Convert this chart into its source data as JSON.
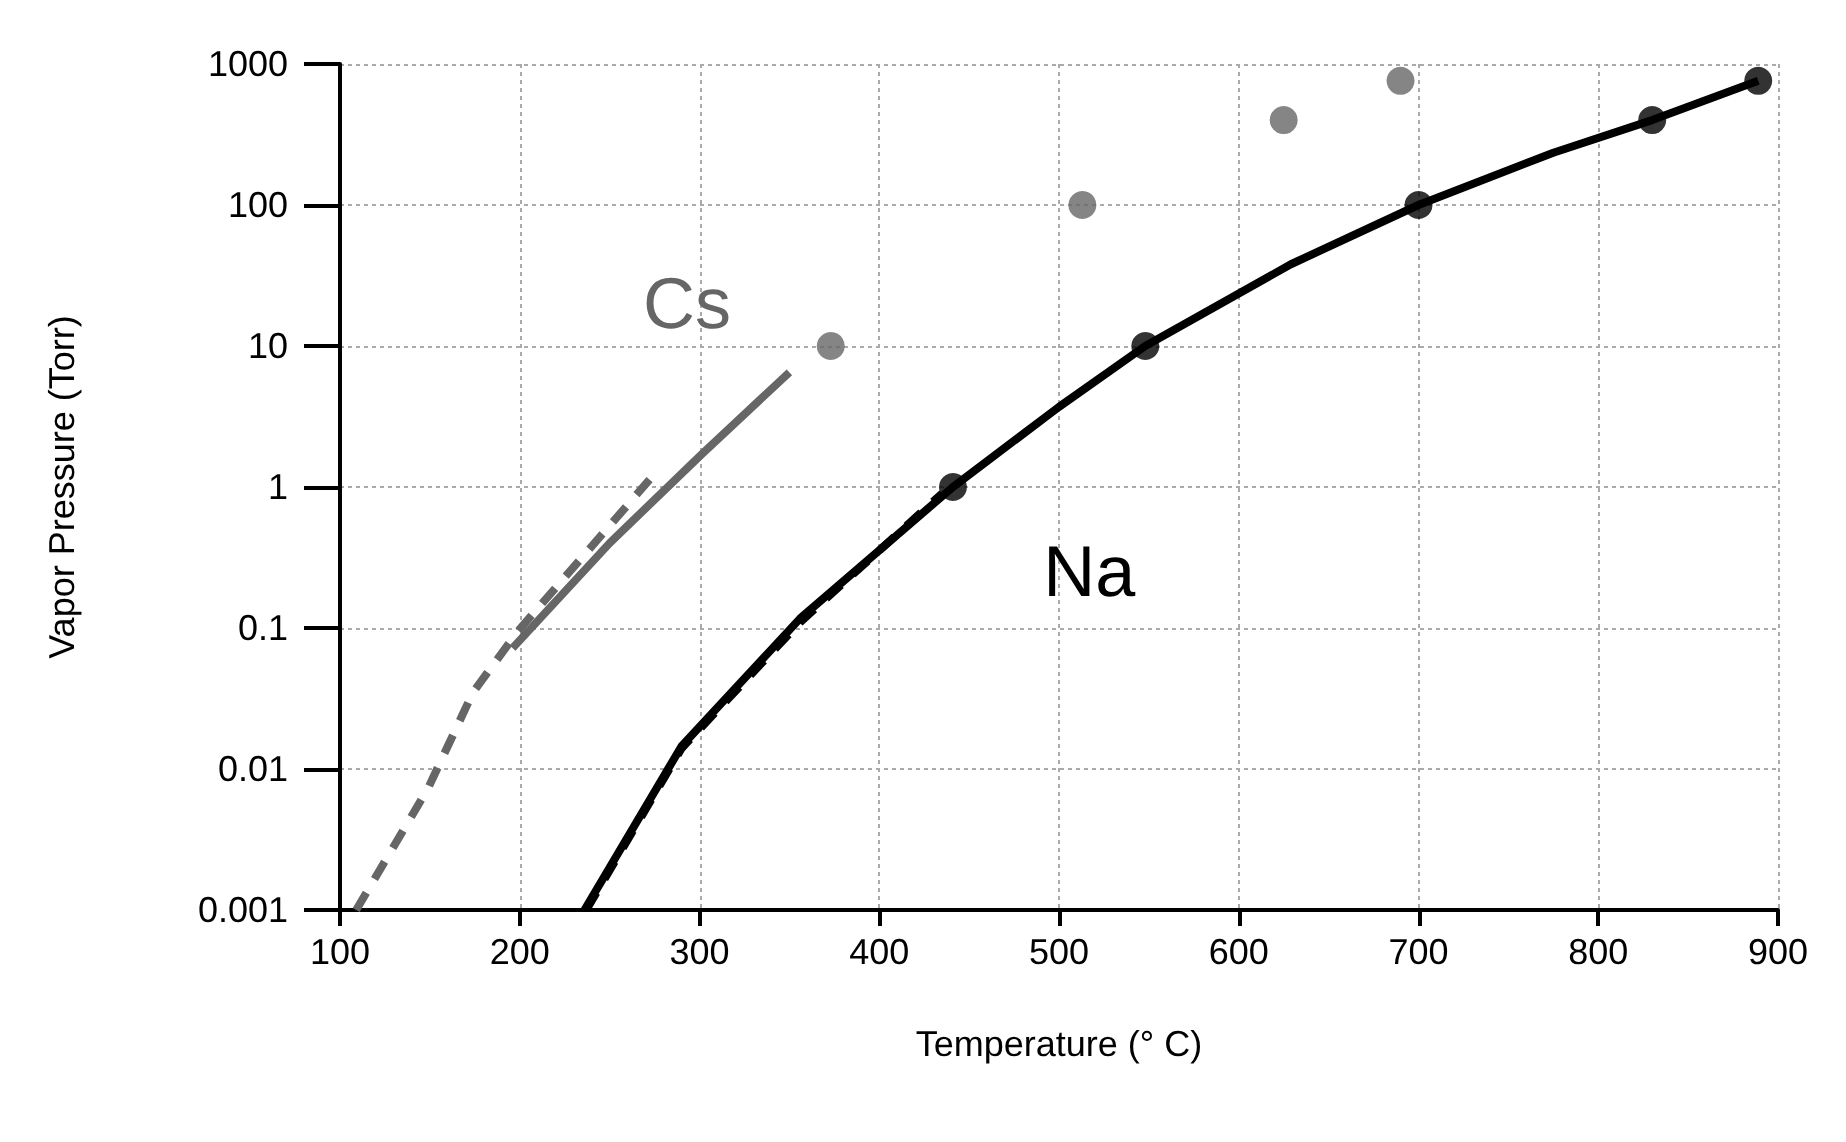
{
  "chart_data": {
    "type": "line",
    "xlabel": "Temperature (° C)",
    "ylabel": "Vapor Pressure (Torr)",
    "log": "y",
    "grid": true,
    "xlim": [
      100,
      900
    ],
    "xticks": [
      100,
      200,
      300,
      400,
      500,
      600,
      700,
      800,
      900
    ],
    "ylim": [
      0.001,
      1000
    ],
    "yticks": [
      0.001,
      0.01,
      0.1,
      1,
      10,
      100,
      1000
    ],
    "series": [
      {
        "name": "Cs",
        "type": "line",
        "line_style": "solid",
        "color": "#666666",
        "x": [
          196,
          250,
          301,
          350
        ],
        "values": [
          0.072,
          0.4,
          1.7,
          6.5
        ]
      },
      {
        "type": "line",
        "line_style": "dashed",
        "color": "#666666",
        "x": [
          109,
          149,
          174,
          199,
          247,
          274
        ],
        "values": [
          0.001,
          0.0073,
          0.035,
          0.095,
          0.48,
          1.2
        ]
      },
      {
        "type": "scatter",
        "marker": "circle",
        "color": "#666666",
        "x": [
          373,
          513,
          625,
          690
        ],
        "values": [
          10,
          100,
          400,
          760
        ]
      },
      {
        "name": "Na",
        "line_style": "solid",
        "color": "#000000",
        "x": [
          236,
          290,
          356,
          441,
          500,
          548,
          629,
          700,
          775,
          830,
          889
        ],
        "values": [
          0.001,
          0.0145,
          0.117,
          1,
          3.7,
          10,
          38,
          100,
          235,
          400,
          760
        ]
      },
      {
        "type": "line",
        "line_style": "dashed",
        "color": "#000000",
        "x": [
          237,
          290,
          356,
          435
        ],
        "values": [
          0.001,
          0.014,
          0.11,
          0.9
        ]
      },
      {
        "type": "scatter",
        "marker": "circle",
        "color": "#000000",
        "x": [
          441,
          548,
          700,
          830,
          889
        ],
        "values": [
          1,
          10,
          100,
          400,
          760
        ]
      }
    ]
  }
}
